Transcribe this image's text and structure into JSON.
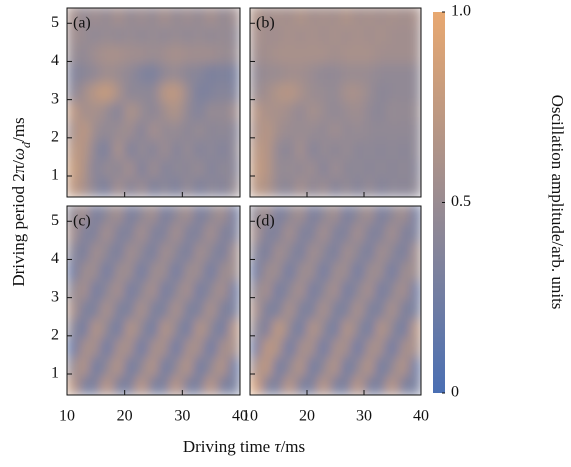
{
  "chart_data": [
    {
      "type": "heatmap",
      "label": "(a)",
      "x": [
        11,
        13,
        15,
        17,
        19,
        21,
        23,
        25,
        27,
        29,
        31,
        33,
        35,
        37,
        39
      ],
      "y": [
        0.7,
        1.2,
        1.7,
        2.2,
        2.7,
        3.2,
        3.7,
        4.2,
        4.7,
        5.2
      ],
      "values": [
        [
          0.75,
          0.6,
          0.4,
          0.3,
          0.6,
          0.35,
          0.55,
          0.3,
          0.45,
          0.3,
          0.5,
          0.3,
          0.45,
          0.35,
          0.5
        ],
        [
          0.8,
          0.65,
          0.35,
          0.5,
          0.4,
          0.6,
          0.3,
          0.55,
          0.35,
          0.45,
          0.4,
          0.5,
          0.35,
          0.45,
          0.4
        ],
        [
          0.7,
          0.7,
          0.4,
          0.3,
          0.65,
          0.3,
          0.5,
          0.35,
          0.55,
          0.35,
          0.5,
          0.35,
          0.45,
          0.35,
          0.45
        ],
        [
          0.55,
          0.75,
          0.5,
          0.45,
          0.5,
          0.55,
          0.35,
          0.6,
          0.45,
          0.5,
          0.4,
          0.5,
          0.4,
          0.45,
          0.4
        ],
        [
          0.75,
          0.55,
          0.6,
          0.5,
          0.35,
          0.65,
          0.5,
          0.4,
          0.55,
          0.65,
          0.45,
          0.35,
          0.5,
          0.45,
          0.55
        ],
        [
          0.4,
          0.55,
          0.7,
          0.8,
          0.6,
          0.4,
          0.45,
          0.4,
          0.7,
          0.75,
          0.5,
          0.3,
          0.35,
          0.4,
          0.35
        ],
        [
          0.35,
          0.4,
          0.45,
          0.55,
          0.5,
          0.45,
          0.35,
          0.3,
          0.45,
          0.5,
          0.4,
          0.4,
          0.3,
          0.35,
          0.3
        ],
        [
          0.5,
          0.45,
          0.55,
          0.6,
          0.6,
          0.55,
          0.55,
          0.5,
          0.55,
          0.6,
          0.55,
          0.55,
          0.55,
          0.5,
          0.5
        ],
        [
          0.55,
          0.5,
          0.45,
          0.5,
          0.45,
          0.5,
          0.45,
          0.5,
          0.45,
          0.5,
          0.45,
          0.5,
          0.45,
          0.5,
          0.45
        ],
        [
          0.6,
          0.45,
          0.55,
          0.45,
          0.6,
          0.45,
          0.55,
          0.45,
          0.6,
          0.45,
          0.55,
          0.45,
          0.6,
          0.45,
          0.55
        ]
      ],
      "xlim": [
        10,
        40
      ],
      "ylim": [
        0.45,
        5.4
      ],
      "xticks": [
        10,
        20,
        30,
        40
      ],
      "yticks": [
        1,
        2,
        3,
        4,
        5
      ]
    },
    {
      "type": "heatmap",
      "label": "(b)",
      "x": [
        11,
        13,
        15,
        17,
        19,
        21,
        23,
        25,
        27,
        29,
        31,
        33,
        35,
        37,
        39
      ],
      "y": [
        0.7,
        1.2,
        1.7,
        2.2,
        2.7,
        3.2,
        3.7,
        4.2,
        4.7,
        5.2
      ],
      "values": [
        [
          0.7,
          0.65,
          0.45,
          0.4,
          0.6,
          0.4,
          0.55,
          0.35,
          0.5,
          0.35,
          0.5,
          0.35,
          0.45,
          0.4,
          0.45
        ],
        [
          0.75,
          0.7,
          0.45,
          0.5,
          0.45,
          0.55,
          0.35,
          0.55,
          0.4,
          0.45,
          0.4,
          0.45,
          0.4,
          0.45,
          0.4
        ],
        [
          0.7,
          0.7,
          0.45,
          0.4,
          0.6,
          0.35,
          0.5,
          0.4,
          0.5,
          0.4,
          0.45,
          0.4,
          0.45,
          0.4,
          0.45
        ],
        [
          0.6,
          0.7,
          0.55,
          0.5,
          0.5,
          0.5,
          0.45,
          0.55,
          0.45,
          0.5,
          0.45,
          0.45,
          0.45,
          0.45,
          0.45
        ],
        [
          0.7,
          0.6,
          0.6,
          0.55,
          0.45,
          0.6,
          0.5,
          0.45,
          0.5,
          0.55,
          0.45,
          0.4,
          0.5,
          0.45,
          0.5
        ],
        [
          0.5,
          0.55,
          0.65,
          0.7,
          0.6,
          0.5,
          0.5,
          0.45,
          0.6,
          0.6,
          0.5,
          0.4,
          0.45,
          0.45,
          0.45
        ],
        [
          0.45,
          0.5,
          0.5,
          0.55,
          0.55,
          0.5,
          0.45,
          0.45,
          0.5,
          0.5,
          0.5,
          0.45,
          0.45,
          0.45,
          0.45
        ],
        [
          0.55,
          0.55,
          0.6,
          0.6,
          0.6,
          0.6,
          0.6,
          0.55,
          0.6,
          0.6,
          0.6,
          0.55,
          0.55,
          0.55,
          0.55
        ],
        [
          0.6,
          0.55,
          0.55,
          0.6,
          0.55,
          0.6,
          0.55,
          0.6,
          0.55,
          0.6,
          0.55,
          0.6,
          0.55,
          0.55,
          0.55
        ],
        [
          0.65,
          0.55,
          0.6,
          0.55,
          0.65,
          0.55,
          0.6,
          0.55,
          0.65,
          0.55,
          0.6,
          0.55,
          0.6,
          0.55,
          0.6
        ]
      ],
      "xlim": [
        10,
        40
      ],
      "ylim": [
        0.45,
        5.4
      ],
      "xticks": [
        10,
        20,
        30,
        40
      ],
      "yticks": [
        1,
        2,
        3,
        4,
        5
      ]
    },
    {
      "type": "heatmap",
      "label": "(c)",
      "x": [
        11,
        13,
        15,
        17,
        19,
        21,
        23,
        25,
        27,
        29,
        31,
        33,
        35,
        37,
        39
      ],
      "y": [
        0.7,
        1.2,
        1.7,
        2.2,
        2.7,
        3.2,
        3.7,
        4.2,
        4.7,
        5.2
      ],
      "values": [
        [
          0.75,
          0.3,
          0.3,
          0.75,
          0.3,
          0.3,
          0.75,
          0.3,
          0.3,
          0.75,
          0.3,
          0.3,
          0.75,
          0.3,
          0.3
        ],
        [
          0.45,
          0.71,
          0.19,
          0.45,
          0.71,
          0.19,
          0.45,
          0.71,
          0.19,
          0.45,
          0.71,
          0.19,
          0.45,
          0.71,
          0.19
        ],
        [
          0.15,
          0.6,
          0.6,
          0.15,
          0.6,
          0.6,
          0.15,
          0.6,
          0.6,
          0.15,
          0.6,
          0.6,
          0.15,
          0.6,
          0.6
        ],
        [
          0.45,
          0.19,
          0.71,
          0.45,
          0.19,
          0.71,
          0.45,
          0.19,
          0.71,
          0.45,
          0.19,
          0.71,
          0.45,
          0.19,
          0.71
        ],
        [
          0.65,
          0.31,
          0.31,
          0.65,
          0.31,
          0.31,
          0.65,
          0.31,
          0.31,
          0.65,
          0.31,
          0.31,
          0.65,
          0.31,
          0.31
        ],
        [
          0.43,
          0.62,
          0.23,
          0.43,
          0.62,
          0.23,
          0.43,
          0.62,
          0.23,
          0.43,
          0.62,
          0.23,
          0.43,
          0.62,
          0.23
        ],
        [
          0.2,
          0.54,
          0.54,
          0.2,
          0.54,
          0.54,
          0.2,
          0.54,
          0.54,
          0.2,
          0.54,
          0.54,
          0.2,
          0.54,
          0.54
        ],
        [
          0.43,
          0.27,
          0.58,
          0.43,
          0.27,
          0.58,
          0.43,
          0.27,
          0.58,
          0.43,
          0.27,
          0.58,
          0.43,
          0.27,
          0.58
        ],
        [
          0.6,
          0.34,
          0.34,
          0.6,
          0.34,
          0.34,
          0.6,
          0.34,
          0.34,
          0.6,
          0.34,
          0.34,
          0.6,
          0.34,
          0.34
        ],
        [
          0.43,
          0.58,
          0.27,
          0.43,
          0.58,
          0.27,
          0.43,
          0.58,
          0.27,
          0.43,
          0.58,
          0.27,
          0.43,
          0.58,
          0.27
        ]
      ],
      "xlim": [
        10,
        40
      ],
      "ylim": [
        0.45,
        5.4
      ],
      "xticks": [
        10,
        20,
        30,
        40
      ],
      "yticks": [
        1,
        2,
        3,
        4,
        5
      ]
    },
    {
      "type": "heatmap",
      "label": "(d)",
      "x": [
        11,
        13,
        15,
        17,
        19,
        21,
        23,
        25,
        27,
        29,
        31,
        33,
        35,
        37,
        39
      ],
      "y": [
        0.7,
        1.2,
        1.7,
        2.2,
        2.7,
        3.2,
        3.7,
        4.2,
        4.7,
        5.2
      ],
      "values": [
        [
          0.9,
          0.35,
          0.3,
          0.75,
          0.3,
          0.3,
          0.75,
          0.3,
          0.3,
          0.75,
          0.3,
          0.3,
          0.75,
          0.3,
          0.3
        ],
        [
          0.55,
          0.8,
          0.2,
          0.45,
          0.71,
          0.19,
          0.45,
          0.71,
          0.19,
          0.45,
          0.71,
          0.19,
          0.45,
          0.71,
          0.19
        ],
        [
          0.2,
          0.75,
          0.65,
          0.15,
          0.6,
          0.6,
          0.15,
          0.6,
          0.6,
          0.15,
          0.6,
          0.6,
          0.15,
          0.6,
          0.6
        ],
        [
          0.5,
          0.25,
          0.8,
          0.45,
          0.19,
          0.71,
          0.45,
          0.19,
          0.71,
          0.45,
          0.19,
          0.71,
          0.45,
          0.19,
          0.71
        ],
        [
          0.65,
          0.31,
          0.31,
          0.65,
          0.31,
          0.31,
          0.65,
          0.31,
          0.31,
          0.65,
          0.31,
          0.31,
          0.65,
          0.31,
          0.31
        ],
        [
          0.43,
          0.62,
          0.23,
          0.43,
          0.62,
          0.23,
          0.43,
          0.62,
          0.23,
          0.43,
          0.62,
          0.23,
          0.43,
          0.62,
          0.23
        ],
        [
          0.2,
          0.54,
          0.54,
          0.2,
          0.54,
          0.54,
          0.2,
          0.54,
          0.54,
          0.2,
          0.54,
          0.54,
          0.2,
          0.54,
          0.54
        ],
        [
          0.43,
          0.27,
          0.58,
          0.43,
          0.27,
          0.58,
          0.43,
          0.27,
          0.58,
          0.43,
          0.27,
          0.58,
          0.43,
          0.27,
          0.58
        ],
        [
          0.6,
          0.34,
          0.34,
          0.6,
          0.34,
          0.34,
          0.6,
          0.34,
          0.34,
          0.6,
          0.34,
          0.34,
          0.6,
          0.34,
          0.34
        ],
        [
          0.43,
          0.58,
          0.27,
          0.43,
          0.58,
          0.27,
          0.43,
          0.58,
          0.27,
          0.43,
          0.58,
          0.27,
          0.43,
          0.58,
          0.27
        ]
      ],
      "xlim": [
        10,
        40
      ],
      "ylim": [
        0.45,
        5.4
      ],
      "xticks": [
        10,
        20,
        30,
        40
      ],
      "yticks": [
        1,
        2,
        3,
        4,
        5
      ]
    }
  ],
  "xlabel": [
    "Driving time ",
    "τ",
    "/ms"
  ],
  "ylabel": [
    "Driving period 2π/",
    "ω",
    "d",
    "/ms"
  ],
  "colorbar": {
    "label": "Oscillation amplitude/arb. units",
    "lim": [
      0,
      1
    ],
    "ticks": [
      0,
      0.5,
      {
        "value": 1,
        "label": "1.0"
      }
    ],
    "colors": [
      "#4a6fb3",
      "#e8a870"
    ]
  }
}
